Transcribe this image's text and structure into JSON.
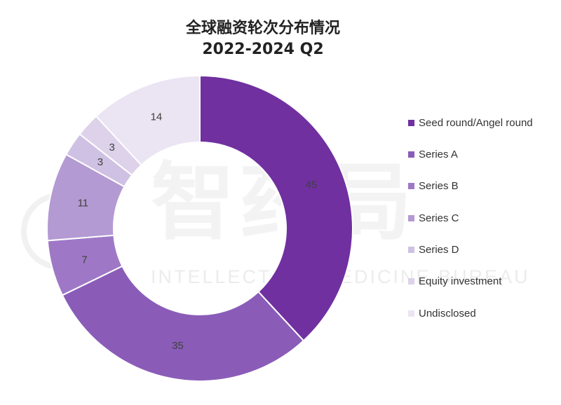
{
  "watermark": {
    "text": "智药局",
    "subtext": "INTELLECTUAL MEDICINE BUREAU"
  },
  "chart_data": {
    "type": "pie",
    "donut": true,
    "title": "全球融资轮次分布情况",
    "subtitle": "2022-2024 Q2",
    "legend_position": "right",
    "categories": [
      "Seed round/Angel round",
      "Series A",
      "Series B",
      "Series C",
      "Series D",
      "Equity investment",
      "Undisclosed"
    ],
    "values": [
      45,
      35,
      7,
      11,
      3,
      3,
      14
    ],
    "colors": [
      "#7030a0",
      "#8a5cb8",
      "#9e78c6",
      "#b49ad2",
      "#cfc1e3",
      "#ddd2ea",
      "#ebe4f3"
    ]
  }
}
